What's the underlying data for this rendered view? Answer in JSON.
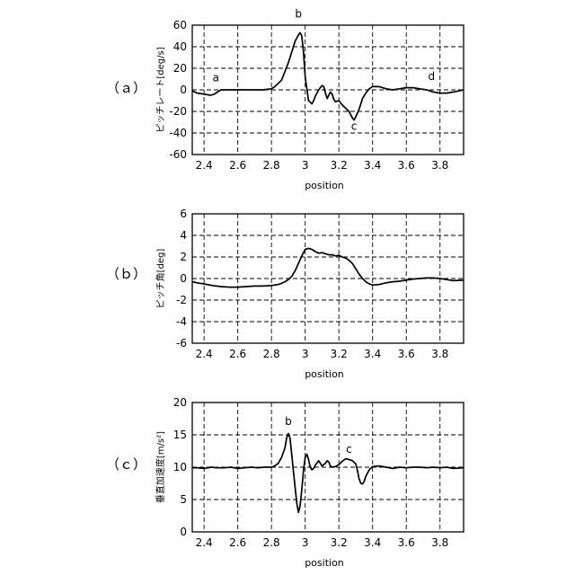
{
  "panel_labels": [
    "（ａ）",
    "（ｂ）",
    "（ｃ）"
  ],
  "chart_data": [
    {
      "type": "line",
      "panel": "（ａ）",
      "title": "",
      "xlabel": "position",
      "ylabel": "ピッチレート[deg/s]",
      "xlim": [
        2.33,
        3.94
      ],
      "ylim": [
        -60,
        60
      ],
      "xticks": [
        2.4,
        2.6,
        2.8,
        3,
        3.2,
        3.4,
        3.6,
        3.8
      ],
      "xtick_labels": [
        "2.4",
        "2.6",
        "2.8",
        "3",
        "3.2",
        "3.4",
        "3.6",
        "3.8"
      ],
      "yticks": [
        -60,
        -40,
        -20,
        0,
        20,
        40,
        60
      ],
      "ytick_labels": [
        "-60",
        "-40",
        "-20",
        "0",
        "20",
        "40",
        "60"
      ],
      "grid": true,
      "annotations": [
        {
          "text": "a",
          "x": 2.47,
          "y": 8
        },
        {
          "text": "b",
          "x": 2.96,
          "y": 67
        },
        {
          "text": "c",
          "x": 3.29,
          "y": -37
        },
        {
          "text": "d",
          "x": 3.75,
          "y": 9
        }
      ],
      "series": [
        {
          "x": [
            2.33,
            2.36,
            2.4,
            2.44,
            2.46,
            2.48,
            2.5,
            2.55,
            2.6,
            2.65,
            2.7,
            2.75,
            2.8,
            2.82,
            2.84,
            2.86,
            2.88,
            2.9,
            2.92,
            2.94,
            2.96,
            2.97,
            2.98,
            2.99,
            3.0,
            3.02,
            3.04,
            3.05,
            3.06,
            3.08,
            3.1,
            3.11,
            3.12,
            3.13,
            3.14,
            3.15,
            3.16,
            3.17,
            3.18,
            3.2,
            3.22,
            3.24,
            3.26,
            3.28,
            3.29,
            3.3,
            3.32,
            3.34,
            3.36,
            3.38,
            3.4,
            3.44,
            3.48,
            3.52,
            3.56,
            3.6,
            3.64,
            3.68,
            3.72,
            3.76,
            3.8,
            3.84,
            3.88,
            3.94
          ],
          "y": [
            -1,
            -3,
            -4,
            -5,
            -4,
            -2,
            0,
            0,
            0,
            0,
            0,
            0,
            1,
            3,
            6,
            9,
            17,
            25,
            35,
            45,
            51,
            53,
            50,
            35,
            12,
            -10,
            -13,
            -10,
            -6,
            0,
            4,
            3,
            -3,
            -8,
            -5,
            -2,
            -4,
            -9,
            -11,
            -10,
            -14,
            -17,
            -20,
            -26,
            -28,
            -25,
            -18,
            -8,
            -3,
            1,
            3,
            3,
            1,
            0,
            1,
            2,
            2,
            1,
            0,
            -2,
            -3,
            -3,
            -2,
            0
          ]
        }
      ]
    },
    {
      "type": "line",
      "panel": "（ｂ）",
      "title": "",
      "xlabel": "position",
      "ylabel": "ピッチ角[deg]",
      "xlim": [
        2.33,
        3.94
      ],
      "ylim": [
        -6,
        6
      ],
      "xticks": [
        2.4,
        2.6,
        2.8,
        3,
        3.2,
        3.4,
        3.6,
        3.8
      ],
      "xtick_labels": [
        "2.4",
        "2.6",
        "2.8",
        "3",
        "3.2",
        "3.4",
        "3.6",
        "3.8"
      ],
      "yticks": [
        -6,
        -4,
        -2,
        0,
        2,
        4,
        6
      ],
      "ytick_labels": [
        "-6",
        "-4",
        "-2",
        "0",
        "2",
        "4",
        "6"
      ],
      "grid": true,
      "series": [
        {
          "x": [
            2.33,
            2.36,
            2.4,
            2.45,
            2.5,
            2.55,
            2.6,
            2.65,
            2.7,
            2.75,
            2.8,
            2.84,
            2.86,
            2.88,
            2.9,
            2.92,
            2.94,
            2.96,
            2.98,
            3.0,
            3.02,
            3.04,
            3.06,
            3.08,
            3.1,
            3.12,
            3.14,
            3.16,
            3.18,
            3.2,
            3.22,
            3.24,
            3.26,
            3.28,
            3.3,
            3.32,
            3.34,
            3.36,
            3.38,
            3.4,
            3.44,
            3.48,
            3.52,
            3.56,
            3.6,
            3.64,
            3.68,
            3.72,
            3.76,
            3.8,
            3.84,
            3.88,
            3.94
          ],
          "y": [
            -0.3,
            -0.4,
            -0.5,
            -0.65,
            -0.75,
            -0.8,
            -0.8,
            -0.75,
            -0.7,
            -0.7,
            -0.65,
            -0.55,
            -0.45,
            -0.3,
            -0.1,
            0.2,
            0.7,
            1.4,
            2.1,
            2.7,
            2.8,
            2.7,
            2.5,
            2.35,
            2.4,
            2.3,
            2.2,
            2.2,
            2.1,
            2.15,
            2.0,
            1.9,
            1.7,
            1.4,
            0.9,
            0.4,
            0.0,
            -0.3,
            -0.5,
            -0.6,
            -0.55,
            -0.4,
            -0.3,
            -0.25,
            -0.15,
            -0.05,
            0.0,
            0.05,
            0.05,
            0.0,
            -0.1,
            -0.2,
            -0.15
          ]
        }
      ]
    },
    {
      "type": "line",
      "panel": "（ｃ）",
      "title": "",
      "xlabel": "position",
      "ylabel": "垂直加速度[m/s²]",
      "xlim": [
        2.33,
        3.94
      ],
      "ylim": [
        0,
        20
      ],
      "xticks": [
        2.4,
        2.6,
        2.8,
        3,
        3.2,
        3.4,
        3.6,
        3.8
      ],
      "xtick_labels": [
        "2.4",
        "2.6",
        "2.8",
        "3",
        "3.2",
        "3.4",
        "3.6",
        "3.8"
      ],
      "yticks": [
        0,
        5,
        10,
        15,
        20
      ],
      "ytick_labels": [
        "0",
        "5",
        "10",
        "15",
        "20"
      ],
      "grid": true,
      "annotations": [
        {
          "text": "b",
          "x": 2.9,
          "y": 16.5
        },
        {
          "text": "c",
          "x": 3.26,
          "y": 12.2
        }
      ],
      "series": [
        {
          "x": [
            2.33,
            2.36,
            2.4,
            2.44,
            2.48,
            2.52,
            2.56,
            2.6,
            2.64,
            2.68,
            2.72,
            2.76,
            2.8,
            2.82,
            2.84,
            2.86,
            2.88,
            2.89,
            2.9,
            2.91,
            2.92,
            2.93,
            2.94,
            2.95,
            2.96,
            2.97,
            2.98,
            2.99,
            3.0,
            3.01,
            3.02,
            3.03,
            3.04,
            3.05,
            3.06,
            3.08,
            3.1,
            3.12,
            3.13,
            3.14,
            3.15,
            3.16,
            3.18,
            3.2,
            3.22,
            3.24,
            3.26,
            3.28,
            3.3,
            3.31,
            3.32,
            3.33,
            3.34,
            3.35,
            3.36,
            3.38,
            3.4,
            3.44,
            3.48,
            3.52,
            3.56,
            3.6,
            3.64,
            3.68,
            3.72,
            3.76,
            3.8,
            3.84,
            3.88,
            3.94
          ],
          "y": [
            9.9,
            9.9,
            9.8,
            10.0,
            9.9,
            9.9,
            10.0,
            9.8,
            9.9,
            10.0,
            9.9,
            10.0,
            10.0,
            10.2,
            10.6,
            11.5,
            13.0,
            14.5,
            15.2,
            14.5,
            12.0,
            9.5,
            7.0,
            4.5,
            3.0,
            4.0,
            6.5,
            9.5,
            11.5,
            12.0,
            11.2,
            10.0,
            9.6,
            9.8,
            10.3,
            11.0,
            10.2,
            10.6,
            11.0,
            10.8,
            10.2,
            10.0,
            10.1,
            10.4,
            10.9,
            11.3,
            11.2,
            11.0,
            10.5,
            9.5,
            8.2,
            7.5,
            7.4,
            7.8,
            8.6,
            9.6,
            10.1,
            10.2,
            10.0,
            9.8,
            10.0,
            9.9,
            10.0,
            10.0,
            9.9,
            10.0,
            9.9,
            10.0,
            9.8,
            9.9
          ]
        }
      ]
    }
  ]
}
